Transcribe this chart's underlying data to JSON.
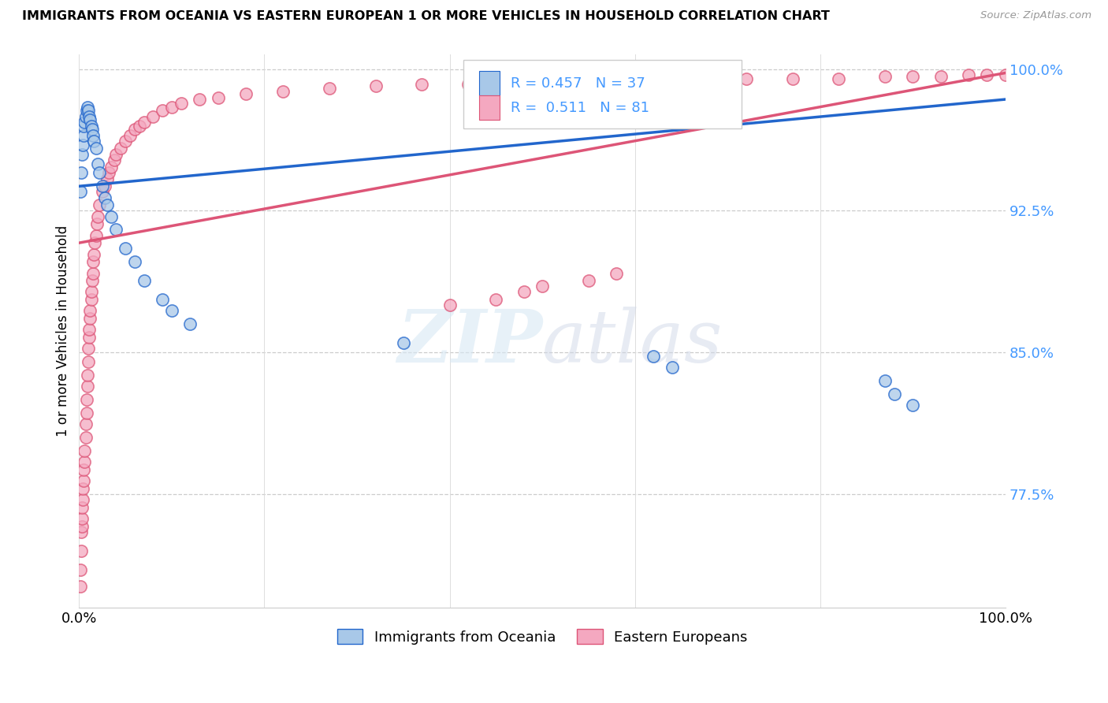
{
  "title": "IMMIGRANTS FROM OCEANIA VS EASTERN EUROPEAN 1 OR MORE VEHICLES IN HOUSEHOLD CORRELATION CHART",
  "source": "Source: ZipAtlas.com",
  "ylabel": "1 or more Vehicles in Household",
  "ytick_vals": [
    0.775,
    0.85,
    0.925,
    1.0
  ],
  "ytick_labels": [
    "77.5%",
    "85.0%",
    "92.5%",
    "100.0%"
  ],
  "grid_ytick_vals": [
    0.775,
    0.85,
    0.925,
    1.0
  ],
  "xlim": [
    0.0,
    1.0
  ],
  "ylim": [
    0.715,
    1.008
  ],
  "r_oceania": 0.457,
  "n_oceania": 37,
  "r_eastern": 0.511,
  "n_eastern": 81,
  "legend_label_oceania": "Immigrants from Oceania",
  "legend_label_eastern": "Eastern Europeans",
  "color_oceania": "#a8c8e8",
  "color_eastern": "#f4a8c0",
  "trendline_color_oceania": "#2266cc",
  "trendline_color_eastern": "#dd5577",
  "watermark_zip": "ZIP",
  "watermark_atlas": "atlas",
  "tick_color": "#4499ff",
  "oceania_x": [
    0.001,
    0.002,
    0.003,
    0.004,
    0.005,
    0.005,
    0.006,
    0.007,
    0.008,
    0.009,
    0.01,
    0.011,
    0.012,
    0.013,
    0.014,
    0.015,
    0.016,
    0.018,
    0.02,
    0.022,
    0.025,
    0.028,
    0.03,
    0.035,
    0.04,
    0.05,
    0.06,
    0.07,
    0.09,
    0.1,
    0.12,
    0.35,
    0.62,
    0.64,
    0.87,
    0.88,
    0.9
  ],
  "oceania_y": [
    0.935,
    0.945,
    0.955,
    0.96,
    0.965,
    0.97,
    0.972,
    0.975,
    0.978,
    0.98,
    0.978,
    0.975,
    0.973,
    0.97,
    0.968,
    0.965,
    0.962,
    0.958,
    0.95,
    0.945,
    0.938,
    0.932,
    0.928,
    0.922,
    0.915,
    0.905,
    0.898,
    0.888,
    0.878,
    0.872,
    0.865,
    0.855,
    0.848,
    0.842,
    0.835,
    0.828,
    0.822
  ],
  "eastern_x": [
    0.001,
    0.001,
    0.002,
    0.002,
    0.003,
    0.003,
    0.003,
    0.004,
    0.004,
    0.005,
    0.005,
    0.006,
    0.006,
    0.007,
    0.007,
    0.008,
    0.008,
    0.009,
    0.009,
    0.01,
    0.01,
    0.011,
    0.011,
    0.012,
    0.012,
    0.013,
    0.013,
    0.014,
    0.015,
    0.015,
    0.016,
    0.017,
    0.018,
    0.019,
    0.02,
    0.022,
    0.025,
    0.028,
    0.03,
    0.032,
    0.035,
    0.038,
    0.04,
    0.045,
    0.05,
    0.055,
    0.06,
    0.065,
    0.07,
    0.08,
    0.09,
    0.1,
    0.11,
    0.13,
    0.15,
    0.18,
    0.22,
    0.27,
    0.32,
    0.37,
    0.42,
    0.47,
    0.52,
    0.57,
    0.62,
    0.67,
    0.72,
    0.77,
    0.82,
    0.87,
    0.9,
    0.93,
    0.96,
    0.98,
    1.0,
    0.4,
    0.45,
    0.48,
    0.5,
    0.55,
    0.58
  ],
  "eastern_y": [
    0.726,
    0.735,
    0.745,
    0.755,
    0.758,
    0.762,
    0.768,
    0.772,
    0.778,
    0.782,
    0.788,
    0.792,
    0.798,
    0.805,
    0.812,
    0.818,
    0.825,
    0.832,
    0.838,
    0.845,
    0.852,
    0.858,
    0.862,
    0.868,
    0.872,
    0.878,
    0.882,
    0.888,
    0.892,
    0.898,
    0.902,
    0.908,
    0.912,
    0.918,
    0.922,
    0.928,
    0.935,
    0.938,
    0.942,
    0.945,
    0.948,
    0.952,
    0.955,
    0.958,
    0.962,
    0.965,
    0.968,
    0.97,
    0.972,
    0.975,
    0.978,
    0.98,
    0.982,
    0.984,
    0.985,
    0.987,
    0.988,
    0.99,
    0.991,
    0.992,
    0.992,
    0.993,
    0.993,
    0.994,
    0.994,
    0.994,
    0.995,
    0.995,
    0.995,
    0.996,
    0.996,
    0.996,
    0.997,
    0.997,
    0.997,
    0.875,
    0.878,
    0.882,
    0.885,
    0.888,
    0.892
  ],
  "trendline_oceania_x0": 0.0,
  "trendline_oceania_y0": 0.938,
  "trendline_oceania_x1": 1.0,
  "trendline_oceania_y1": 0.984,
  "trendline_eastern_x0": 0.0,
  "trendline_eastern_y0": 0.908,
  "trendline_eastern_x1": 1.0,
  "trendline_eastern_y1": 0.998
}
